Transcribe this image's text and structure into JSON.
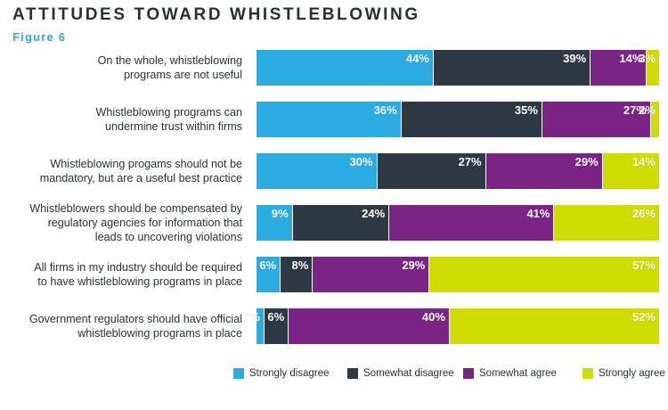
{
  "header": {
    "title": "ATTITUDES TOWARD WHISTLEBLOWING",
    "figure": "Figure 6"
  },
  "colors": {
    "strongly_disagree": "#2aace2",
    "somewhat_disagree": "#2d3a44",
    "somewhat_agree": "#7a2585",
    "strongly_agree": "#cfdc00"
  },
  "chart_data": {
    "type": "bar",
    "orientation": "horizontal",
    "stacked": true,
    "title": "ATTITUDES TOWARD WHISTLEBLOWING",
    "subtitle": "Figure 6",
    "categories": [
      [
        "On the whole, whistleblowing",
        "programs are not useful"
      ],
      [
        "Whistleblowing programs can",
        "undermine trust within firms"
      ],
      [
        "Whistleblowing progams should not be",
        "mandatory, but are a useful best practice"
      ],
      [
        "Whistleblowers should be compensated by",
        "regulatory agencies for information that",
        "leads to uncovering violations"
      ],
      [
        "All firms in my industry should be required",
        "to have whistleblowing programs in place"
      ],
      [
        "Government regulators should have official",
        "whistleblowing programs in place"
      ]
    ],
    "series": [
      {
        "name": "Strongly disagree",
        "color_key": "strongly_disagree",
        "values": [
          44,
          36,
          30,
          9,
          6,
          2
        ]
      },
      {
        "name": "Somewhat disagree",
        "color_key": "somewhat_disagree",
        "values": [
          39,
          35,
          27,
          24,
          8,
          6
        ]
      },
      {
        "name": "Somewhat agree",
        "color_key": "somewhat_agree",
        "values": [
          14,
          27,
          29,
          41,
          29,
          40
        ]
      },
      {
        "name": "Strongly agree",
        "color_key": "strongly_agree",
        "values": [
          3,
          2,
          14,
          26,
          57,
          52
        ]
      }
    ],
    "value_suffix": "%",
    "legend_position": "bottom-right"
  }
}
